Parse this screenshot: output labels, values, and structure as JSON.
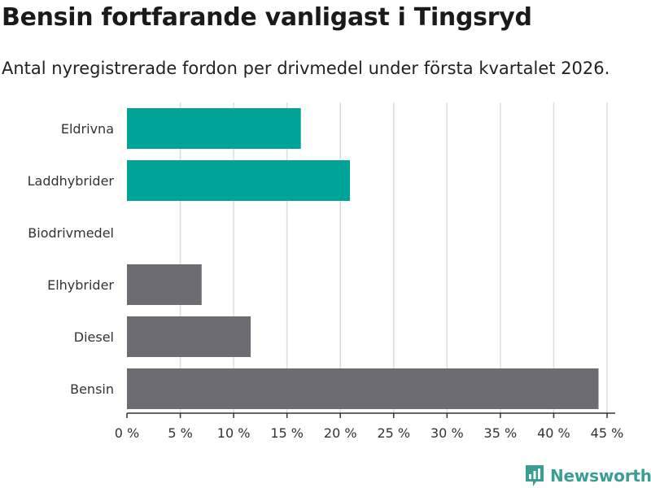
{
  "title": "Bensin fortfarande vanligast i Tingsryd",
  "subtitle": "Antal nyregistrerade fordon per drivmedel under första kvartalet 2026.",
  "brand": {
    "name": "Newsworthy",
    "color": "#3a9e95"
  },
  "colors": {
    "electric": "#00a398",
    "fossil": "#6d6c73",
    "grid": "#dddddd",
    "axis": "#333333",
    "text": "#333333"
  },
  "chart_data": {
    "type": "bar",
    "orientation": "horizontal",
    "title": "Bensin fortfarande vanligast i Tingsryd",
    "subtitle": "Antal nyregistrerade fordon per drivmedel under första kvartalet 2026.",
    "xlabel": "",
    "ylabel": "",
    "xlim": [
      0,
      45
    ],
    "ticks": [
      0,
      5,
      10,
      15,
      20,
      25,
      30,
      35,
      40,
      45
    ],
    "tick_labels": [
      "0 %",
      "5 %",
      "10 %",
      "15 %",
      "20 %",
      "25 %",
      "30 %",
      "35 %",
      "40 %",
      "45 %"
    ],
    "grid": true,
    "categories": [
      "Eldrivna",
      "Laddhybrider",
      "Biodrivmedel",
      "Elhybrider",
      "Diesel",
      "Bensin"
    ],
    "values": [
      16.3,
      20.9,
      0,
      7.0,
      11.6,
      44.2
    ],
    "groups": [
      "electric",
      "electric",
      "electric",
      "fossil",
      "fossil",
      "fossil"
    ]
  }
}
